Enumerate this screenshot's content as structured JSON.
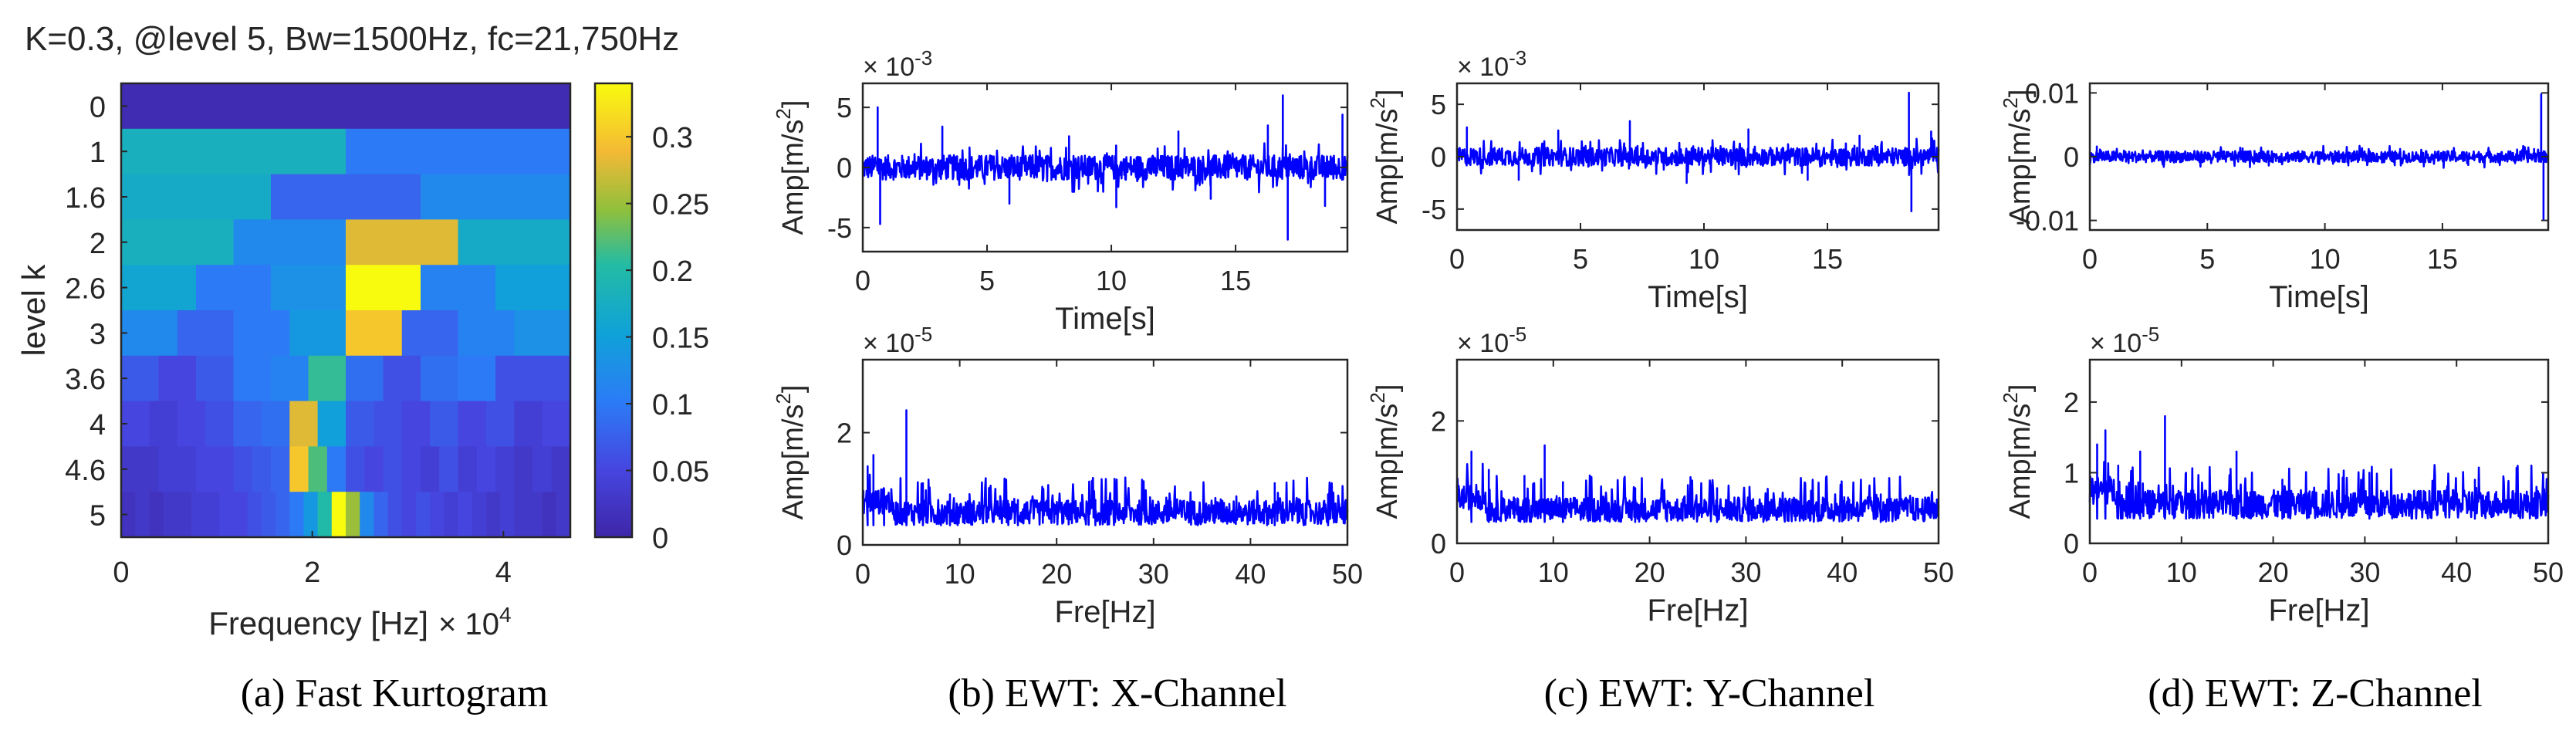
{
  "kurtogram": {
    "title": "K=0.3, @level 5, Bw=1500Hz, fc=21,750Hz",
    "ylabel": "level k",
    "xlabel": "Frequency [Hz]",
    "x_multiplier": "× 10",
    "x_multiplier_exp": "4",
    "x_ticks": [
      "0",
      "2",
      "4"
    ],
    "x_tick_values": [
      0,
      2,
      4
    ],
    "x_range": [
      0,
      4.7
    ],
    "level_labels": [
      "0",
      "1",
      "1.6",
      "2",
      "2.6",
      "3",
      "3.6",
      "4",
      "4.6",
      "5"
    ],
    "colorbar_ticks": [
      "0",
      "0.05",
      "0.1",
      "0.15",
      "0.2",
      "0.25",
      "0.3"
    ],
    "colorbar_values": [
      0,
      0.05,
      0.1,
      0.15,
      0.2,
      0.25,
      0.3
    ],
    "colorbar_max": 0.34,
    "rows": [
      [
        0.01
      ],
      [
        0.18,
        0.1
      ],
      [
        0.17,
        0.08,
        0.12
      ],
      [
        0.18,
        0.12,
        0.28,
        0.17
      ],
      [
        0.16,
        0.1,
        0.13,
        0.34,
        0.11,
        0.15
      ],
      [
        0.12,
        0.08,
        0.1,
        0.14,
        0.3,
        0.08,
        0.11,
        0.13
      ],
      [
        0.07,
        0.05,
        0.07,
        0.1,
        0.11,
        0.21,
        0.09,
        0.06,
        0.09,
        0.1,
        0.06,
        0.06
      ],
      [
        0.05,
        0.04,
        0.05,
        0.06,
        0.08,
        0.09,
        0.28,
        0.15,
        0.07,
        0.06,
        0.05,
        0.07,
        0.05,
        0.06,
        0.04,
        0.05
      ],
      [
        0.03,
        0.03,
        0.04,
        0.04,
        0.05,
        0.05,
        0.06,
        0.07,
        0.08,
        0.3,
        0.22,
        0.1,
        0.06,
        0.05,
        0.06,
        0.05,
        0.04,
        0.06,
        0.04,
        0.05,
        0.04,
        0.03,
        0.04,
        0.03
      ],
      [
        0.02,
        0.03,
        0.02,
        0.03,
        0.03,
        0.04,
        0.04,
        0.05,
        0.05,
        0.06,
        0.07,
        0.08,
        0.1,
        0.14,
        0.2,
        0.34,
        0.25,
        0.12,
        0.08,
        0.06,
        0.05,
        0.06,
        0.05,
        0.04,
        0.05,
        0.04,
        0.03,
        0.04,
        0.03,
        0.03,
        0.02,
        0.03
      ]
    ],
    "caption": "(a) Fast Kurtogram"
  },
  "panels": [
    {
      "caption": "(b) EWT: X-Channel",
      "time": {
        "ylabel": "Amp[m/s²]",
        "xlabel": "Time[s]",
        "multiplier": "× 10",
        "multiplier_exp": "-3",
        "yticks": [
          "-5",
          "0",
          "5"
        ],
        "ytick_values": [
          -5,
          0,
          5
        ],
        "ylim": [
          -7,
          7
        ],
        "xticks": [
          "0",
          "5",
          "10",
          "15"
        ],
        "xtick_values": [
          0,
          5,
          10,
          15
        ],
        "xlim": [
          0,
          19.5
        ],
        "noise": 1.3,
        "spikes": [
          [
            0.6,
            5.0
          ],
          [
            0.7,
            -4.7
          ],
          [
            3.2,
            3.4
          ],
          [
            5.9,
            -3.0
          ],
          [
            8.3,
            2.6
          ],
          [
            10.2,
            -3.3
          ],
          [
            12.7,
            3.0
          ],
          [
            14.0,
            -2.6
          ],
          [
            16.3,
            3.5
          ],
          [
            16.9,
            6.0
          ],
          [
            17.1,
            -6.0
          ],
          [
            18.6,
            -3.2
          ],
          [
            19.3,
            4.4
          ]
        ]
      },
      "freq": {
        "ylabel": "Amp[m/s²]",
        "xlabel": "Fre[Hz]",
        "multiplier": "× 10",
        "multiplier_exp": "-5",
        "yticks": [
          "0",
          "2"
        ],
        "ytick_values": [
          0,
          2
        ],
        "ylim": [
          0,
          3.3
        ],
        "xticks": [
          "0",
          "10",
          "20",
          "30",
          "40",
          "50"
        ],
        "xtick_values": [
          0,
          10,
          20,
          30,
          40,
          50
        ],
        "xlim": [
          0,
          50
        ],
        "base": 0.35,
        "var": 0.5,
        "spikes": [
          [
            0.5,
            1.4
          ],
          [
            1.1,
            1.6
          ],
          [
            2.2,
            1.0
          ],
          [
            4.5,
            2.4
          ],
          [
            6.2,
            1.1
          ],
          [
            9.0,
            0.9
          ],
          [
            16.0,
            0.8
          ],
          [
            24.0,
            0.8
          ],
          [
            42.5,
            1.1
          ],
          [
            48.0,
            0.9
          ]
        ]
      }
    },
    {
      "caption": "(c) EWT: Y-Channel",
      "time": {
        "ylabel": "Amp[m/s²]",
        "xlabel": "Time[s]",
        "multiplier": "× 10",
        "multiplier_exp": "-3",
        "yticks": [
          "-5",
          "0",
          "5"
        ],
        "ytick_values": [
          -5,
          0,
          5
        ],
        "ylim": [
          -7,
          7
        ],
        "xticks": [
          "0",
          "5",
          "10",
          "15"
        ],
        "xtick_values": [
          0,
          5,
          10,
          15
        ],
        "xlim": [
          0,
          19.5
        ],
        "noise": 1.1,
        "spikes": [
          [
            0.4,
            2.8
          ],
          [
            2.5,
            -2.2
          ],
          [
            4.1,
            2.5
          ],
          [
            7.0,
            3.4
          ],
          [
            9.3,
            -2.5
          ],
          [
            11.8,
            2.6
          ],
          [
            14.2,
            -2.2
          ],
          [
            16.3,
            2.0
          ],
          [
            18.3,
            6.1
          ],
          [
            18.4,
            -5.2
          ],
          [
            19.2,
            2.4
          ]
        ]
      },
      "freq": {
        "ylabel": "Amp[m/s²]",
        "xlabel": "Fre[Hz]",
        "multiplier": "× 10",
        "multiplier_exp": "-5",
        "yticks": [
          "0",
          "2"
        ],
        "ytick_values": [
          0,
          2
        ],
        "ylim": [
          0,
          3.0
        ],
        "xticks": [
          "0",
          "10",
          "20",
          "30",
          "40",
          "50"
        ],
        "xtick_values": [
          0,
          10,
          20,
          30,
          40,
          50
        ],
        "xlim": [
          0,
          50
        ],
        "base": 0.35,
        "var": 0.45,
        "spikes": [
          [
            1.5,
            1.5
          ],
          [
            3.3,
            1.2
          ],
          [
            7.0,
            1.1
          ],
          [
            9.1,
            1.6
          ],
          [
            11.0,
            1.0
          ],
          [
            18.5,
            0.9
          ],
          [
            27.0,
            0.9
          ],
          [
            44.0,
            0.8
          ]
        ]
      }
    },
    {
      "caption": "(d) EWT: Z-Channel",
      "time": {
        "ylabel": "Amp[m/s²]",
        "xlabel": "Time[s]",
        "multiplier": "",
        "multiplier_exp": "",
        "yticks": [
          "-0.01",
          "0",
          "0.01"
        ],
        "ytick_values": [
          -0.01,
          0,
          0.01
        ],
        "ylim": [
          -0.0115,
          0.0115
        ],
        "xticks": [
          "0",
          "5",
          "10",
          "15"
        ],
        "xtick_values": [
          0,
          5,
          10,
          15
        ],
        "xlim": [
          0,
          19.5
        ],
        "noise": 0.0011,
        "spikes": [
          [
            0.3,
            0.0016
          ],
          [
            3.1,
            -0.0012
          ],
          [
            6.5,
            0.0013
          ],
          [
            9.7,
            -0.0011
          ],
          [
            13.2,
            0.0012
          ],
          [
            16.1,
            -0.0013
          ],
          [
            18.9,
            0.0012
          ],
          [
            19.2,
            0.0098
          ],
          [
            19.3,
            -0.0098
          ]
        ]
      },
      "freq": {
        "ylabel": "Amp[m/s²]",
        "xlabel": "Fre[Hz]",
        "multiplier": "× 10",
        "multiplier_exp": "-5",
        "yticks": [
          "0",
          "1",
          "2"
        ],
        "ytick_values": [
          0,
          1,
          2
        ],
        "ylim": [
          0,
          2.6
        ],
        "xticks": [
          "0",
          "10",
          "20",
          "30",
          "40",
          "50"
        ],
        "xtick_values": [
          0,
          10,
          20,
          30,
          40,
          50
        ],
        "xlim": [
          0,
          50
        ],
        "base": 0.35,
        "var": 0.45,
        "spikes": [
          [
            0.8,
            1.4
          ],
          [
            1.7,
            1.6
          ],
          [
            3.1,
            1.1
          ],
          [
            5.5,
            1.3
          ],
          [
            8.2,
            1.8
          ],
          [
            10.5,
            1.0
          ],
          [
            16.0,
            1.3
          ],
          [
            21.0,
            0.9
          ],
          [
            30.5,
            1.0
          ],
          [
            42.0,
            0.9
          ]
        ]
      }
    }
  ],
  "chart_data": [
    {
      "type": "heatmap",
      "title": "K=0.3, @level 5, Bw=1500Hz, fc=21,750Hz",
      "xlabel": "Frequency [Hz] ×10^4",
      "ylabel": "level k",
      "x_range": [
        0,
        4.7
      ],
      "levels": [
        "0",
        "1",
        "1.6",
        "2",
        "2.6",
        "3",
        "3.6",
        "4",
        "4.6",
        "5"
      ],
      "colorbar_range": [
        0,
        0.34
      ],
      "peak": {
        "level": "2.6",
        "frequency_x1e4": 2.5,
        "value": 0.34
      }
    },
    {
      "type": "line",
      "title": "(b) EWT: X-Channel time",
      "xlabel": "Time[s]",
      "ylabel": "Amp[m/s^2] ×10^-3",
      "xlim": [
        0,
        19.5
      ],
      "ylim": [
        -7,
        7
      ],
      "max_peak": 6.0,
      "min_peak": -6.0
    },
    {
      "type": "line",
      "title": "(b) EWT: X-Channel spectrum",
      "xlabel": "Fre[Hz]",
      "ylabel": "Amp[m/s^2] ×10^-5",
      "xlim": [
        0,
        50
      ],
      "ylim": [
        0,
        3.3
      ],
      "max_peak": 2.4
    },
    {
      "type": "line",
      "title": "(c) EWT: Y-Channel time",
      "xlabel": "Time[s]",
      "ylabel": "Amp[m/s^2] ×10^-3",
      "xlim": [
        0,
        19.5
      ],
      "ylim": [
        -7,
        7
      ],
      "max_peak": 6.1,
      "min_peak": -5.2
    },
    {
      "type": "line",
      "title": "(c) EWT: Y-Channel spectrum",
      "xlabel": "Fre[Hz]",
      "ylabel": "Amp[m/s^2] ×10^-5",
      "xlim": [
        0,
        50
      ],
      "ylim": [
        0,
        3.0
      ],
      "max_peak": 1.6
    },
    {
      "type": "line",
      "title": "(d) EWT: Z-Channel time",
      "xlabel": "Time[s]",
      "ylabel": "Amp[m/s^2]",
      "xlim": [
        0,
        19.5
      ],
      "ylim": [
        -0.0115,
        0.0115
      ],
      "max_peak": 0.0098,
      "min_peak": -0.0098
    },
    {
      "type": "line",
      "title": "(d) EWT: Z-Channel spectrum",
      "xlabel": "Fre[Hz]",
      "ylabel": "Amp[m/s^2] ×10^-5",
      "xlim": [
        0,
        50
      ],
      "ylim": [
        0,
        2.6
      ],
      "max_peak": 1.8
    }
  ],
  "style": {
    "line_color": "#0000ff",
    "axis_color": "#262626"
  }
}
